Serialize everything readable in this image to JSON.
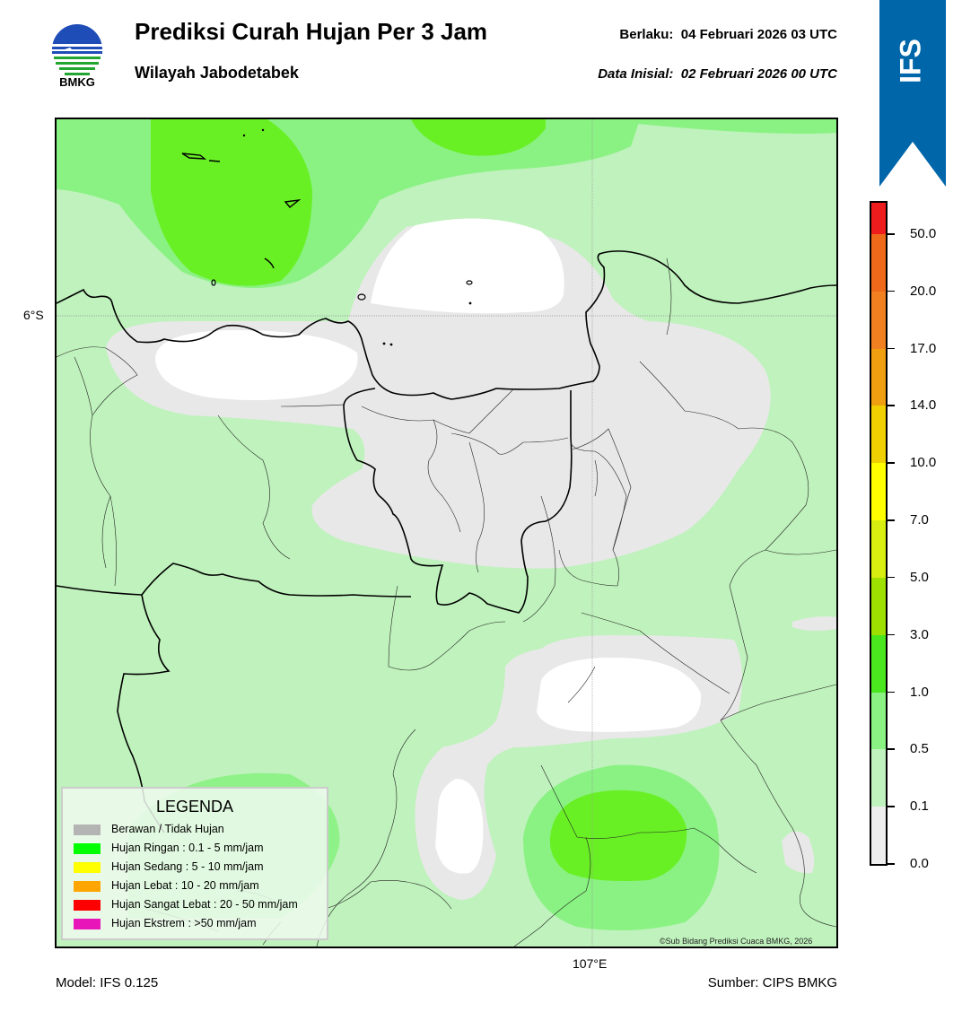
{
  "header": {
    "logo_text": "BMKG",
    "title": "Prediksi Curah Hujan Per 3 Jam",
    "subtitle": "Wilayah Jabodetabek",
    "valid_text": "Berlaku:  04 Februari 2026 03 UTC",
    "init_text": "Data Inisial:  02 Februari 2026 00 UTC"
  },
  "ribbon": {
    "label": "IFS",
    "color": "#0066aa"
  },
  "map": {
    "lat_label": "6°S",
    "lon_label": "107°E",
    "copyright": "©Sub Bidang Prediksi Cuaca BMKG, 2026"
  },
  "legend": {
    "title": "LEGENDA",
    "items": [
      {
        "label": "Berawan / Tidak Hujan",
        "color": "#b4b4b4"
      },
      {
        "label": "Hujan Ringan : 0.1 - 5 mm/jam",
        "color": "#00ff00"
      },
      {
        "label": "Hujan Sedang : 5 - 10 mm/jam",
        "color": "#ffff00"
      },
      {
        "label": "Hujan Lebat : 10 - 20 mm/jam",
        "color": "#ffa500"
      },
      {
        "label": "Hujan Sangat Lebat : 20 - 50 mm/jam",
        "color": "#ff0000"
      },
      {
        "label": "Hujan Ekstrem : >50 mm/jam",
        "color": "#e815b8"
      }
    ]
  },
  "colorbar": {
    "ticks": [
      "0.0",
      "0.1",
      "0.5",
      "1.0",
      "3.0",
      "5.0",
      "7.0",
      "10.0",
      "14.0",
      "17.0",
      "20.0",
      "50.0"
    ],
    "colors": [
      "#eeeeee",
      "#bff2bc",
      "#89f282",
      "#4ae61e",
      "#9ee000",
      "#d8ee10",
      "#ffff00",
      "#f0d000",
      "#ef9f10",
      "#f08020",
      "#ee6a1a",
      "#ee1c1c",
      "#e815b8"
    ]
  },
  "footer": {
    "model": "Model: IFS 0.125",
    "source": "Sumber: CIPS BMKG"
  }
}
